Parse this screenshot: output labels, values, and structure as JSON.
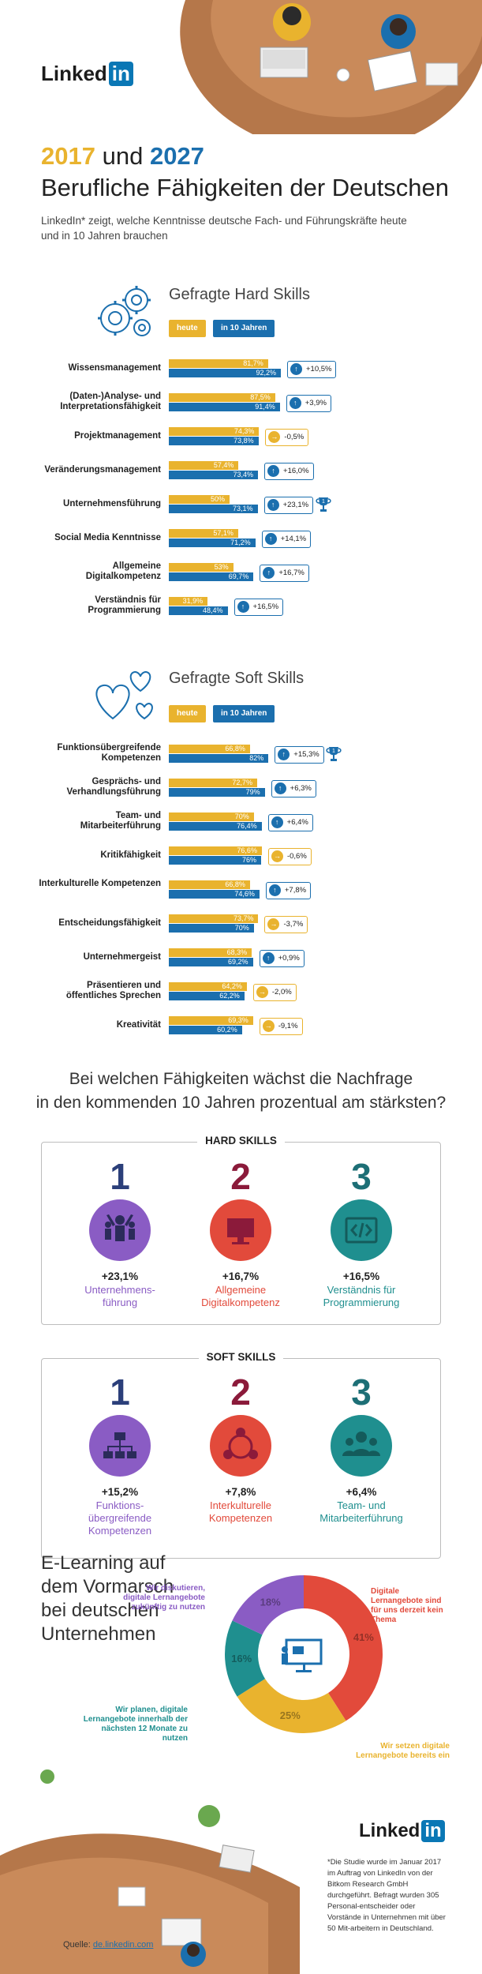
{
  "brand": {
    "logo_text": "Linked",
    "logo_in": "in"
  },
  "header": {
    "year_a": "2017",
    "und": "und",
    "year_b": "2027",
    "title": "Berufliche Fähigkeiten der Deutschen",
    "description": "LinkedIn* zeigt, welche Kenntnisse deutsche Fach- und Führungskräfte heute und in 10 Jahren brauchen"
  },
  "legend": {
    "today": "heute",
    "future": "in 10 Jahren"
  },
  "colors": {
    "today": "#e9b32e",
    "future": "#1b6fae",
    "purple": "#8a5cc4",
    "red": "#e24a3b",
    "teal": "#1f8f8f",
    "dark_red": "#8b1a3a",
    "navy": "#2b3f7a",
    "dark_teal": "#1d6f76"
  },
  "chart_data": [
    {
      "type": "bar",
      "title": "Gefragte Hard Skills",
      "categories": [
        "Wissensmanagement",
        "(Daten-)Analyse- und Interpretationsfähigkeit",
        "Projektmanagement",
        "Veränderungsmanagement",
        "Unternehmensführung",
        "Social Media Kenntnisse",
        "Allgemeine Digitalkompetenz",
        "Verständnis für Programmierung"
      ],
      "series": [
        {
          "name": "heute",
          "values": [
            81.7,
            87.5,
            74.3,
            57.4,
            50,
            57.1,
            53,
            31.9
          ],
          "labels": [
            "81,7%",
            "87,5%",
            "74,3%",
            "57,4%",
            "50%",
            "57,1%",
            "53%",
            "31,9%"
          ]
        },
        {
          "name": "in 10 Jahren",
          "values": [
            92.2,
            91.4,
            73.8,
            73.4,
            73.1,
            71.2,
            69.7,
            48.4
          ],
          "labels": [
            "92,2%",
            "91,4%",
            "73,8%",
            "73,4%",
            "73,1%",
            "71,2%",
            "69,7%",
            "48,4%"
          ]
        }
      ],
      "changes": [
        "+10,5%",
        "+3,9%",
        "-0,5%",
        "+16,0%",
        "+23,1%",
        "+14,1%",
        "+16,7%",
        "+16,5%"
      ],
      "ylim": [
        0,
        100
      ]
    },
    {
      "type": "bar",
      "title": "Gefragte Soft Skills",
      "categories": [
        "Funktionsübergreifende Kompetenzen",
        "Gesprächs- und Verhandlungsführung",
        "Team- und Mitarbeiterführung",
        "Kritikfähigkeit",
        "Interkulturelle Kompetenzen",
        "Entscheidungsfähigkeit",
        "Unternehmergeist",
        "Präsentieren und öffentliches Sprechen",
        "Kreativität"
      ],
      "series": [
        {
          "name": "heute",
          "values": [
            66.8,
            72.7,
            70,
            76.6,
            66.8,
            73.7,
            68.3,
            64.2,
            69.3
          ],
          "labels": [
            "66,8%",
            "72,7%",
            "70%",
            "76,6%",
            "66,8%",
            "73,7%",
            "68,3%",
            "64,2%",
            "69,3%"
          ]
        },
        {
          "name": "in 10 Jahren",
          "values": [
            82,
            79,
            76.4,
            76,
            74.6,
            70,
            69.2,
            62.2,
            60.2
          ],
          "labels": [
            "82%",
            "79%",
            "76,4%",
            "76%",
            "74,6%",
            "70%",
            "69,2%",
            "62,2%",
            "60,2%"
          ]
        }
      ],
      "changes": [
        "+15,3%",
        "+6,3%",
        "+6,4%",
        "-0,6%",
        "+7,8%",
        "-3,7%",
        "+0,9%",
        "-2,0%",
        "-9,1%"
      ],
      "ylim": [
        0,
        100
      ]
    },
    {
      "type": "pie",
      "title": "",
      "categories": [
        "Digitale Lernangebote sind für uns derzeit kein Thema",
        "Wir setzen digitale Lernangebote bereits ein",
        "Wir planen, digitale Lernangebote innerhalb der nächsten 12 Monate zu nutzen",
        "Wir diskutieren, digitale Lernangebote zukünftig zu nutzen"
      ],
      "values": [
        41,
        25,
        16,
        18
      ],
      "labels": [
        "41%",
        "25%",
        "16%",
        "18%"
      ]
    }
  ],
  "sections": {
    "hard_title": "Gefragte Hard Skills",
    "soft_title": "Gefragte Soft Skills"
  },
  "question": {
    "line1": "Bei welchen Fähigkeiten wächst die Nachfrage",
    "line2": "in den kommenden 10 Jahren prozentual am stärksten?"
  },
  "top_hard": {
    "heading": "HARD SKILLS",
    "items": [
      {
        "rank": "1",
        "pct": "+23,1%",
        "name": "Unternehmens-\nführung",
        "icon": "people-celebrating-icon"
      },
      {
        "rank": "2",
        "pct": "+16,7%",
        "name": "Allgemeine\nDigitalkompetenz",
        "icon": "monitor-icon"
      },
      {
        "rank": "3",
        "pct": "+16,5%",
        "name": "Verständnis für\nProgrammierung",
        "icon": "code-brackets-icon"
      }
    ]
  },
  "top_soft": {
    "heading": "SOFT SKILLS",
    "items": [
      {
        "rank": "1",
        "pct": "+15,2%",
        "name": "Funktions-\nübergreifende\nKompetenzen",
        "icon": "org-chart-icon"
      },
      {
        "rank": "2",
        "pct": "+7,8%",
        "name": "Interkulturelle\nKompetenzen",
        "icon": "people-circle-icon"
      },
      {
        "rank": "3",
        "pct": "+6,4%",
        "name": "Team- und\nMitarbeiterführung",
        "icon": "team-icon"
      }
    ]
  },
  "elearning": {
    "title": "E-Learning auf dem Vormarsch bei deutschen Unternehmen",
    "slice_labels": [
      "41%",
      "25%",
      "16%",
      "18%"
    ],
    "labels": [
      "Digitale Lernangebote sind für uns derzeit kein Thema",
      "Wir setzen digitale Lernangebote bereits ein",
      "Wir planen, digitale Lernangebote innerhalb der nächsten 12 Monate zu nutzen",
      "Wir diskutieren, digitale Lernangebote zukünftig zu nutzen"
    ]
  },
  "footer": {
    "note": "*Die Studie wurde im Januar 2017 im Auftrag von LinkedIn von der Bitkom Research GmbH durchgeführt. Befragt wurden 305 Personal-entscheider oder Vorstände in Unternehmen mit über 50 Mit-arbeitern in Deutschland.",
    "source_label": "Quelle:",
    "source_link": "de.linkedin.com"
  }
}
